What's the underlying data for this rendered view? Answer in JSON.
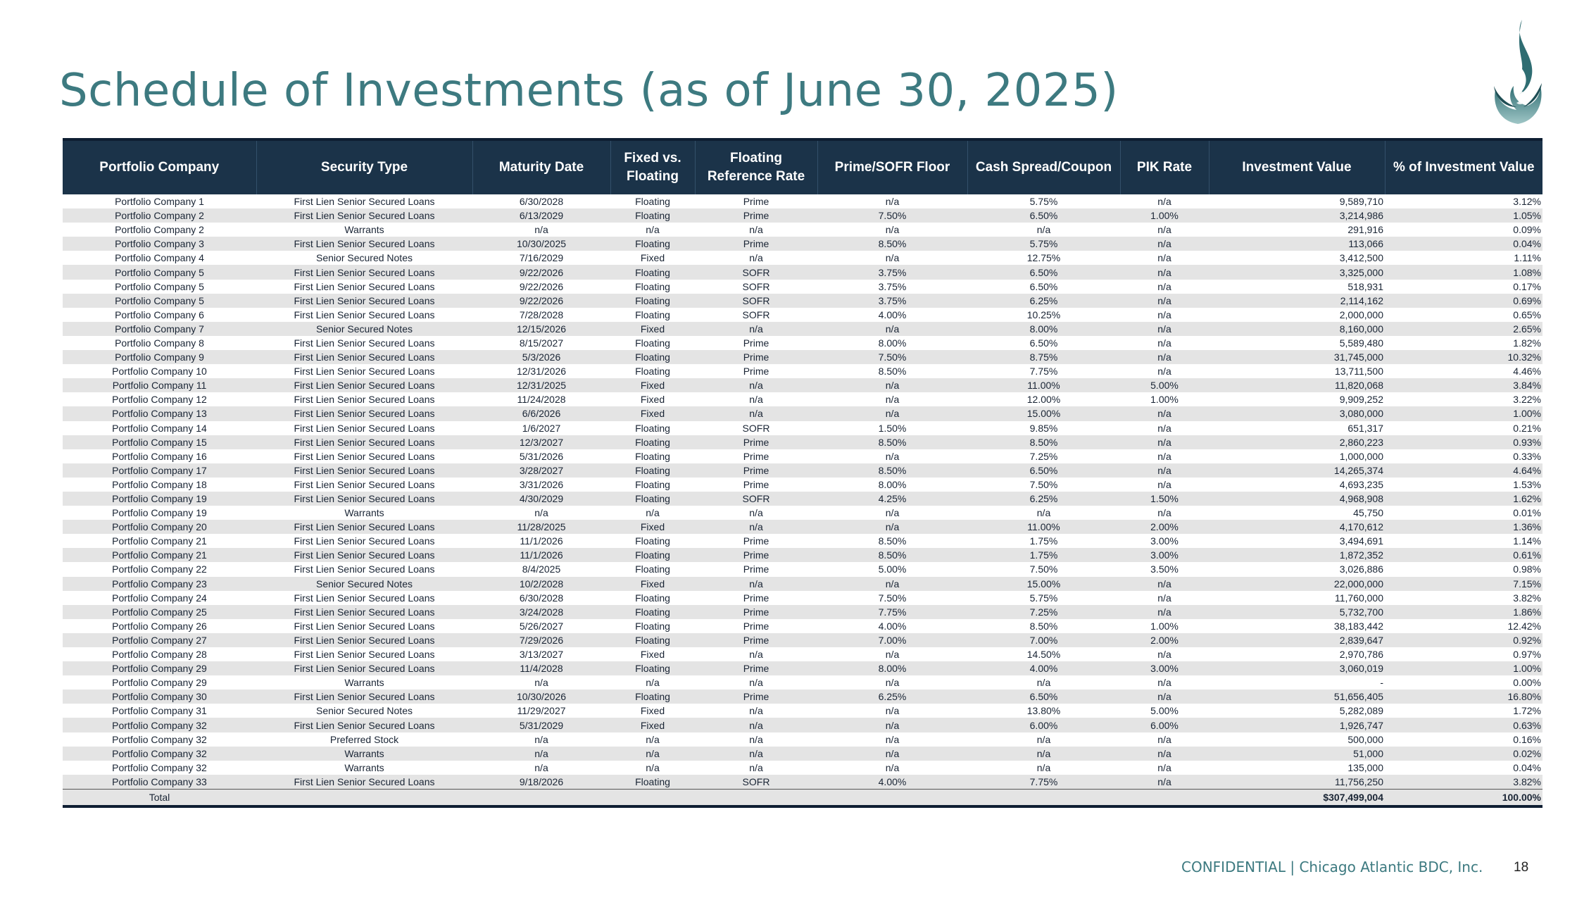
{
  "header": {
    "title": "Schedule of Investments (as of June 30, 2025)",
    "logo": "flame-logo-icon"
  },
  "table": {
    "columns": [
      "Portfolio Company",
      "Security Type",
      "Maturity Date",
      "Fixed vs. Floating",
      "Floating Reference Rate",
      "Prime/SOFR Floor",
      "Cash Spread/Coupon",
      "PIK Rate",
      "Investment Value",
      "% of Investment Value"
    ],
    "rows": [
      [
        "Portfolio Company  1",
        "First Lien Senior Secured Loans",
        "6/30/2028",
        "Floating",
        "Prime",
        "n/a",
        "5.75%",
        "n/a",
        "9,589,710",
        "3.12%"
      ],
      [
        "Portfolio Company  2",
        "First Lien Senior Secured Loans",
        "6/13/2029",
        "Floating",
        "Prime",
        "7.50%",
        "6.50%",
        "1.00%",
        "3,214,986",
        "1.05%"
      ],
      [
        "Portfolio Company  2",
        "Warrants",
        "n/a",
        "n/a",
        "n/a",
        "n/a",
        "n/a",
        "n/a",
        "291,916",
        "0.09%"
      ],
      [
        "Portfolio Company  3",
        "First Lien Senior Secured Loans",
        "10/30/2025",
        "Floating",
        "Prime",
        "8.50%",
        "5.75%",
        "n/a",
        "113,066",
        "0.04%"
      ],
      [
        "Portfolio Company  4",
        "Senior Secured Notes",
        "7/16/2029",
        "Fixed",
        "n/a",
        "n/a",
        "12.75%",
        "n/a",
        "3,412,500",
        "1.11%"
      ],
      [
        "Portfolio Company  5",
        "First Lien Senior Secured Loans",
        "9/22/2026",
        "Floating",
        "SOFR",
        "3.75%",
        "6.50%",
        "n/a",
        "3,325,000",
        "1.08%"
      ],
      [
        "Portfolio Company  5",
        "First Lien Senior Secured Loans",
        "9/22/2026",
        "Floating",
        "SOFR",
        "3.75%",
        "6.50%",
        "n/a",
        "518,931",
        "0.17%"
      ],
      [
        "Portfolio Company  5",
        "First Lien Senior Secured Loans",
        "9/22/2026",
        "Floating",
        "SOFR",
        "3.75%",
        "6.25%",
        "n/a",
        "2,114,162",
        "0.69%"
      ],
      [
        "Portfolio Company  6",
        "First Lien Senior Secured Loans",
        "7/28/2028",
        "Floating",
        "SOFR",
        "4.00%",
        "10.25%",
        "n/a",
        "2,000,000",
        "0.65%"
      ],
      [
        "Portfolio Company  7",
        "Senior Secured Notes",
        "12/15/2026",
        "Fixed",
        "n/a",
        "n/a",
        "8.00%",
        "n/a",
        "8,160,000",
        "2.65%"
      ],
      [
        "Portfolio Company  8",
        "First Lien Senior Secured Loans",
        "8/15/2027",
        "Floating",
        "Prime",
        "8.00%",
        "6.50%",
        "n/a",
        "5,589,480",
        "1.82%"
      ],
      [
        "Portfolio Company  9",
        "First Lien Senior Secured Loans",
        "5/3/2026",
        "Floating",
        "Prime",
        "7.50%",
        "8.75%",
        "n/a",
        "31,745,000",
        "10.32%"
      ],
      [
        "Portfolio Company  10",
        "First Lien Senior Secured Loans",
        "12/31/2026",
        "Floating",
        "Prime",
        "8.50%",
        "7.75%",
        "n/a",
        "13,711,500",
        "4.46%"
      ],
      [
        "Portfolio Company  11",
        "First Lien Senior Secured Loans",
        "12/31/2025",
        "Fixed",
        "n/a",
        "n/a",
        "11.00%",
        "5.00%",
        "11,820,068",
        "3.84%"
      ],
      [
        "Portfolio Company  12",
        "First Lien Senior Secured Loans",
        "11/24/2028",
        "Fixed",
        "n/a",
        "n/a",
        "12.00%",
        "1.00%",
        "9,909,252",
        "3.22%"
      ],
      [
        "Portfolio Company  13",
        "First Lien Senior Secured Loans",
        "6/6/2026",
        "Fixed",
        "n/a",
        "n/a",
        "15.00%",
        "n/a",
        "3,080,000",
        "1.00%"
      ],
      [
        "Portfolio Company  14",
        "First Lien Senior Secured Loans",
        "1/6/2027",
        "Floating",
        "SOFR",
        "1.50%",
        "9.85%",
        "n/a",
        "651,317",
        "0.21%"
      ],
      [
        "Portfolio Company  15",
        "First Lien Senior Secured Loans",
        "12/3/2027",
        "Floating",
        "Prime",
        "8.50%",
        "8.50%",
        "n/a",
        "2,860,223",
        "0.93%"
      ],
      [
        "Portfolio Company  16",
        "First Lien Senior Secured Loans",
        "5/31/2026",
        "Floating",
        "Prime",
        "n/a",
        "7.25%",
        "n/a",
        "1,000,000",
        "0.33%"
      ],
      [
        "Portfolio Company  17",
        "First Lien Senior Secured Loans",
        "3/28/2027",
        "Floating",
        "Prime",
        "8.50%",
        "6.50%",
        "n/a",
        "14,265,374",
        "4.64%"
      ],
      [
        "Portfolio Company  18",
        "First Lien Senior Secured Loans",
        "3/31/2026",
        "Floating",
        "Prime",
        "8.00%",
        "7.50%",
        "n/a",
        "4,693,235",
        "1.53%"
      ],
      [
        "Portfolio Company  19",
        "First Lien Senior Secured Loans",
        "4/30/2029",
        "Floating",
        "SOFR",
        "4.25%",
        "6.25%",
        "1.50%",
        "4,968,908",
        "1.62%"
      ],
      [
        "Portfolio Company  19",
        "Warrants",
        "n/a",
        "n/a",
        "n/a",
        "n/a",
        "n/a",
        "n/a",
        "45,750",
        "0.01%"
      ],
      [
        "Portfolio Company  20",
        "First Lien Senior Secured Loans",
        "11/28/2025",
        "Fixed",
        "n/a",
        "n/a",
        "11.00%",
        "2.00%",
        "4,170,612",
        "1.36%"
      ],
      [
        "Portfolio Company  21",
        "First Lien Senior Secured Loans",
        "11/1/2026",
        "Floating",
        "Prime",
        "8.50%",
        "1.75%",
        "3.00%",
        "3,494,691",
        "1.14%"
      ],
      [
        "Portfolio Company  21",
        "First Lien Senior Secured Loans",
        "11/1/2026",
        "Floating",
        "Prime",
        "8.50%",
        "1.75%",
        "3.00%",
        "1,872,352",
        "0.61%"
      ],
      [
        "Portfolio Company  22",
        "First Lien Senior Secured Loans",
        "8/4/2025",
        "Floating",
        "Prime",
        "5.00%",
        "7.50%",
        "3.50%",
        "3,026,886",
        "0.98%"
      ],
      [
        "Portfolio Company  23",
        "Senior Secured Notes",
        "10/2/2028",
        "Fixed",
        "n/a",
        "n/a",
        "15.00%",
        "n/a",
        "22,000,000",
        "7.15%"
      ],
      [
        "Portfolio Company  24",
        "First Lien Senior Secured Loans",
        "6/30/2028",
        "Floating",
        "Prime",
        "7.50%",
        "5.75%",
        "n/a",
        "11,760,000",
        "3.82%"
      ],
      [
        "Portfolio Company  25",
        "First Lien Senior Secured Loans",
        "3/24/2028",
        "Floating",
        "Prime",
        "7.75%",
        "7.25%",
        "n/a",
        "5,732,700",
        "1.86%"
      ],
      [
        "Portfolio Company  26",
        "First Lien Senior Secured Loans",
        "5/26/2027",
        "Floating",
        "Prime",
        "4.00%",
        "8.50%",
        "1.00%",
        "38,183,442",
        "12.42%"
      ],
      [
        "Portfolio Company  27",
        "First Lien Senior Secured Loans",
        "7/29/2026",
        "Floating",
        "Prime",
        "7.00%",
        "7.00%",
        "2.00%",
        "2,839,647",
        "0.92%"
      ],
      [
        "Portfolio Company  28",
        "First Lien Senior Secured Loans",
        "3/13/2027",
        "Fixed",
        "n/a",
        "n/a",
        "14.50%",
        "n/a",
        "2,970,786",
        "0.97%"
      ],
      [
        "Portfolio Company  29",
        "First Lien Senior Secured Loans",
        "11/4/2028",
        "Floating",
        "Prime",
        "8.00%",
        "4.00%",
        "3.00%",
        "3,060,019",
        "1.00%"
      ],
      [
        "Portfolio Company  29",
        "Warrants",
        "n/a",
        "n/a",
        "n/a",
        "n/a",
        "n/a",
        "n/a",
        "-",
        "0.00%"
      ],
      [
        "Portfolio Company  30",
        "First Lien Senior Secured Loans",
        "10/30/2026",
        "Floating",
        "Prime",
        "6.25%",
        "6.50%",
        "n/a",
        "51,656,405",
        "16.80%"
      ],
      [
        "Portfolio Company  31",
        "Senior Secured Notes",
        "11/29/2027",
        "Fixed",
        "n/a",
        "n/a",
        "13.80%",
        "5.00%",
        "5,282,089",
        "1.72%"
      ],
      [
        "Portfolio Company  32",
        "First Lien Senior Secured Loans",
        "5/31/2029",
        "Fixed",
        "n/a",
        "n/a",
        "6.00%",
        "6.00%",
        "1,926,747",
        "0.63%"
      ],
      [
        "Portfolio Company  32",
        "Preferred Stock",
        "n/a",
        "n/a",
        "n/a",
        "n/a",
        "n/a",
        "n/a",
        "500,000",
        "0.16%"
      ],
      [
        "Portfolio Company  32",
        "Warrants",
        "n/a",
        "n/a",
        "n/a",
        "n/a",
        "n/a",
        "n/a",
        "51,000",
        "0.02%"
      ],
      [
        "Portfolio Company  32",
        "Warrants",
        "n/a",
        "n/a",
        "n/a",
        "n/a",
        "n/a",
        "n/a",
        "135,000",
        "0.04%"
      ],
      [
        "Portfolio Company  33",
        "First Lien Senior Secured Loans",
        "9/18/2026",
        "Floating",
        "SOFR",
        "4.00%",
        "7.75%",
        "n/a",
        "11,756,250",
        "3.82%"
      ]
    ],
    "total": {
      "label": "Total",
      "value": "$307,499,004",
      "pct": "100.00%"
    }
  },
  "footer": {
    "text": "CONFIDENTIAL | Chicago Atlantic BDC, Inc.",
    "page_number": "18"
  },
  "colors": {
    "header_bg": "#1b3349",
    "title": "#3d7a80",
    "stripe": "#e4e4e4"
  }
}
